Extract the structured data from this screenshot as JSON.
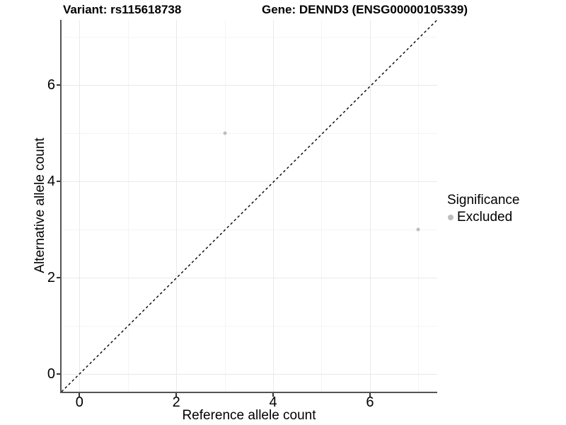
{
  "chart_data": {
    "type": "scatter",
    "title_left": "Variant: rs115618738",
    "title_right": "Gene: DENND3 (ENSG00000105339)",
    "xlabel": "Reference allele count",
    "ylabel": "Alternative allele count",
    "xlim": [
      -0.37,
      7.39
    ],
    "ylim": [
      -0.37,
      7.36
    ],
    "x_major_ticks": [
      0,
      2,
      4,
      6
    ],
    "y_major_ticks": [
      0,
      2,
      4,
      6
    ],
    "x_minor_gridlines": [
      1,
      3,
      5,
      7
    ],
    "y_minor_gridlines": [
      1,
      3,
      5,
      7
    ],
    "grid": true,
    "points": [
      {
        "x": 3,
        "y": 5,
        "significance": "Excluded"
      },
      {
        "x": 7,
        "y": 3,
        "significance": "Excluded"
      }
    ],
    "identity_line": {
      "type": "dashed",
      "equation": "y = x",
      "color": "#000000"
    },
    "legend": {
      "position": "right",
      "title": "Significance",
      "entries": [
        {
          "label": "Excluded",
          "color": "#bdbdbd"
        }
      ]
    },
    "colors": {
      "point": "#bdbdbd",
      "axis_line": "#545454",
      "tick_mark": "#333333",
      "grid_major": "#e9e9e9",
      "grid_minor": "#f4f4f4",
      "text": "#000000",
      "background": "#ffffff"
    }
  }
}
